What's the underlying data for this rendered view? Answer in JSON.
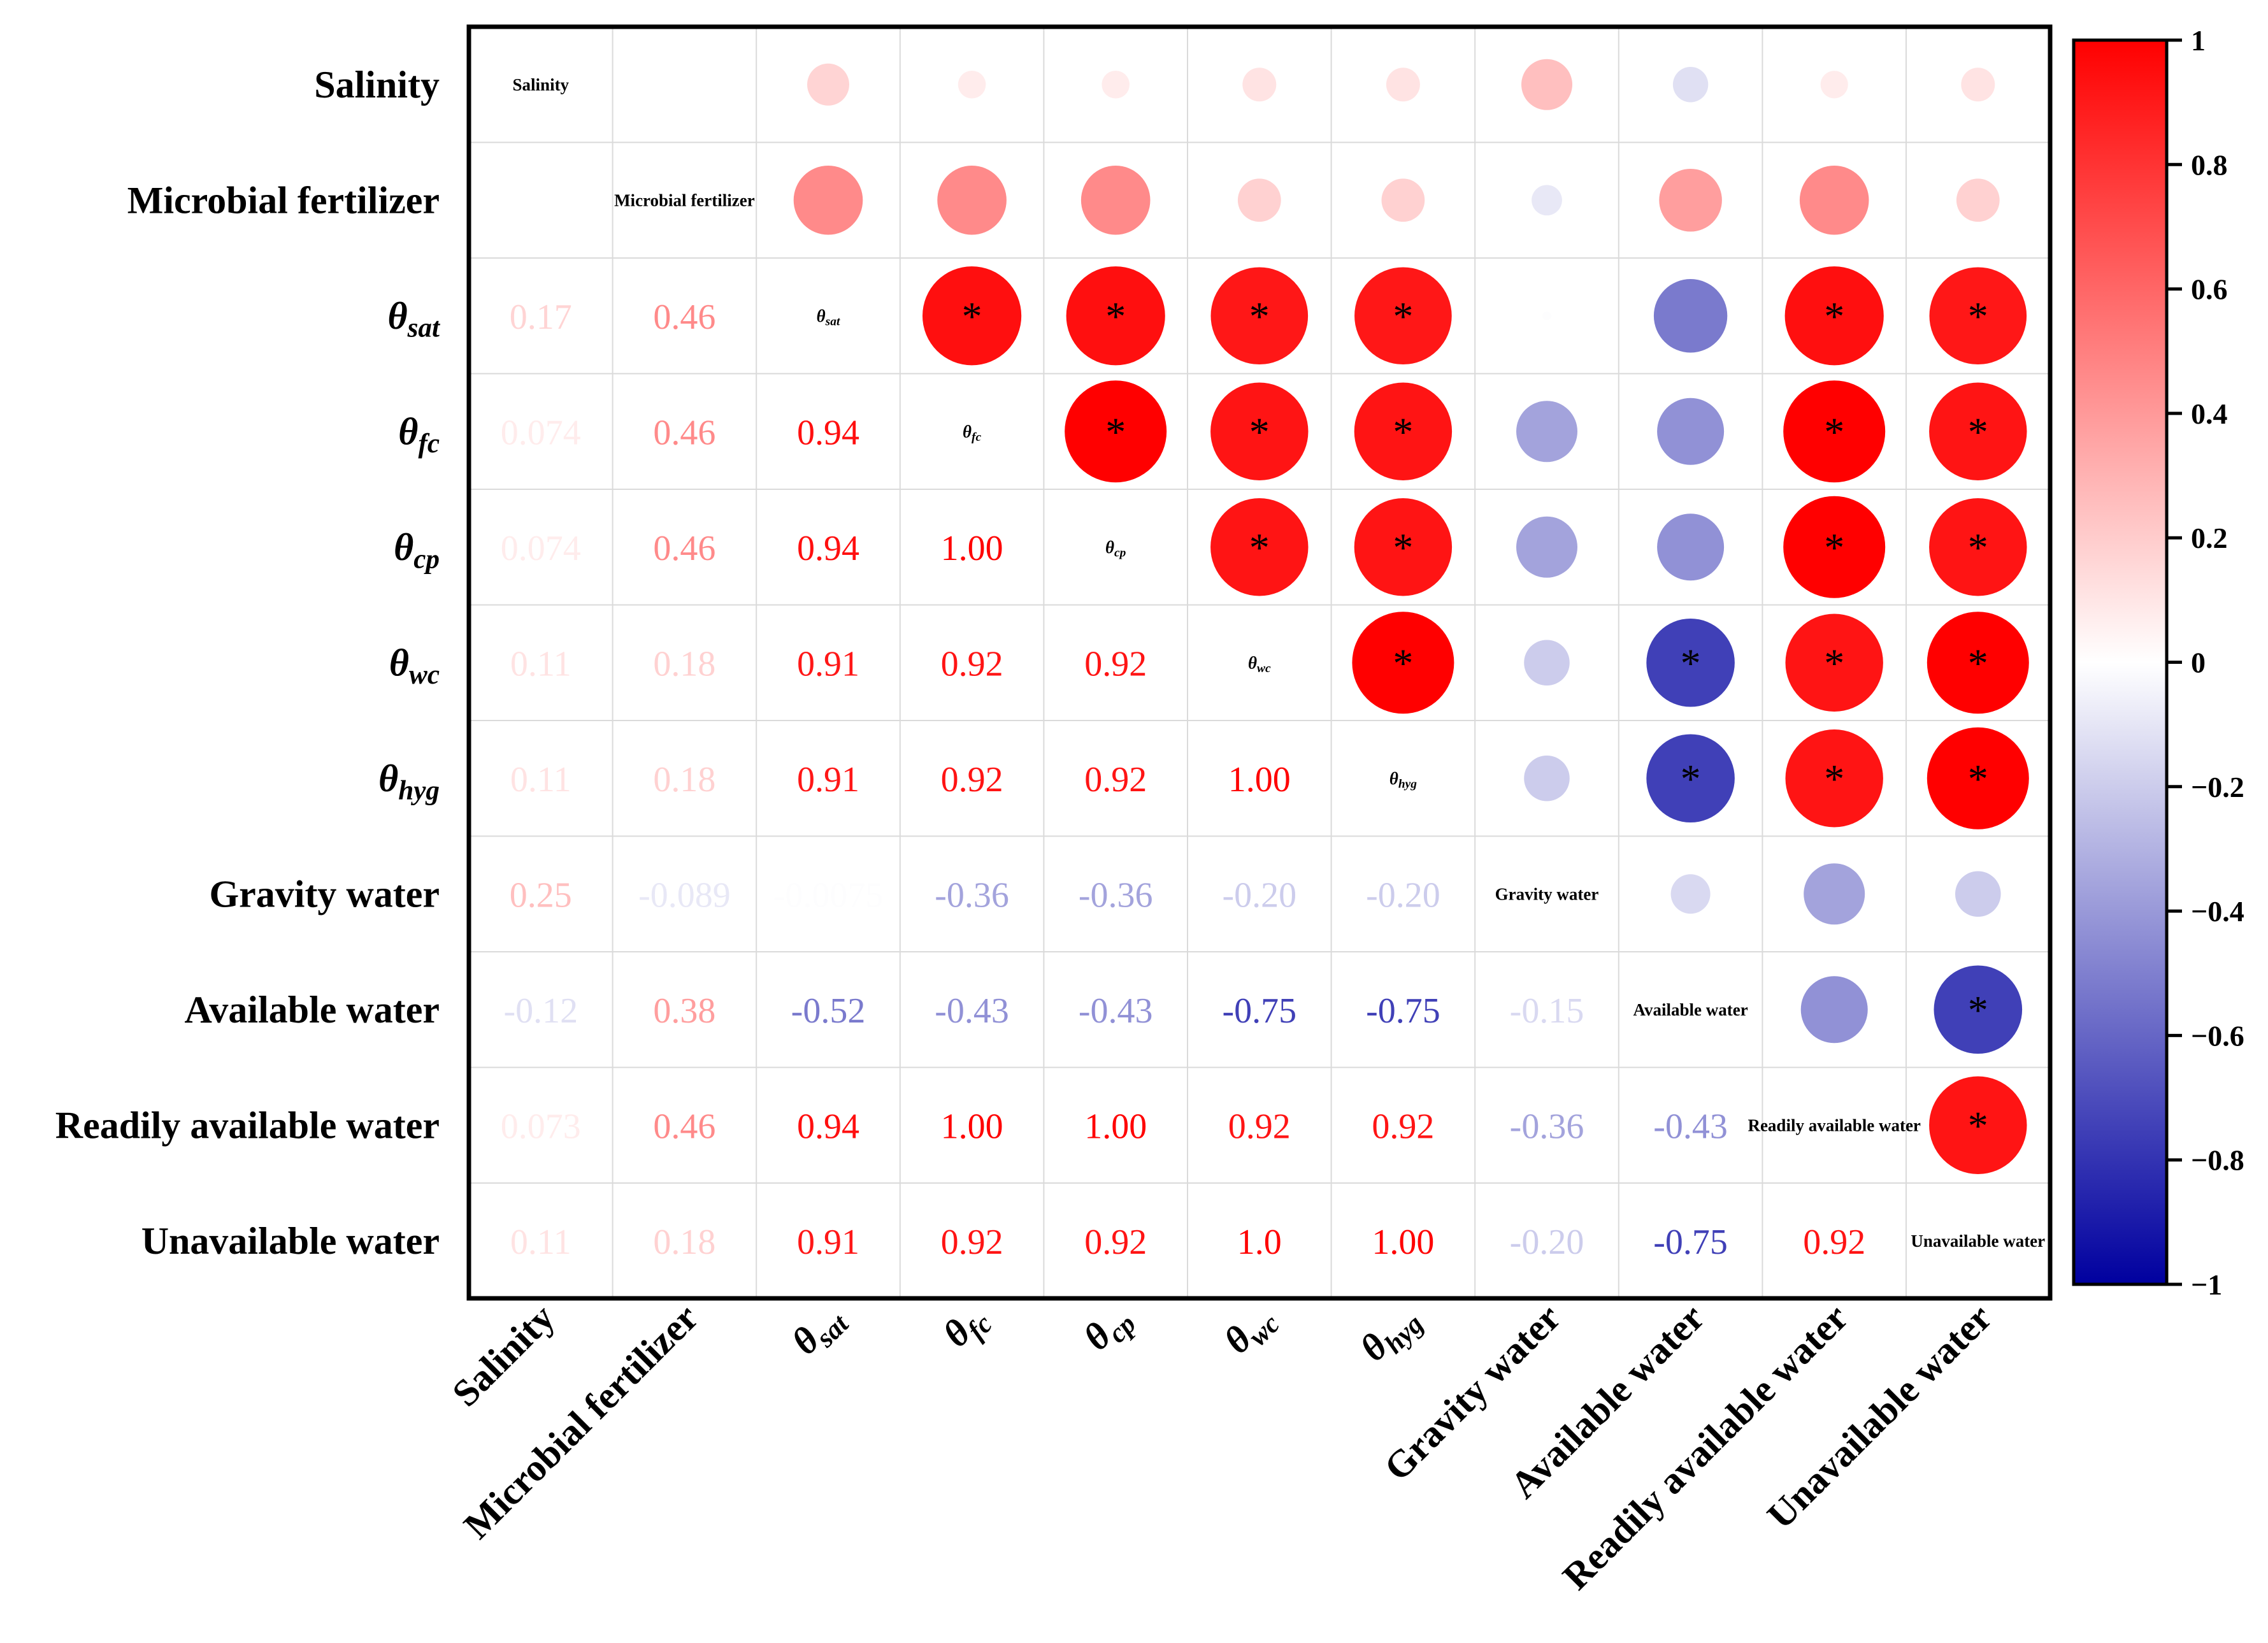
{
  "chart_data": {
    "type": "heatmap",
    "title": "",
    "variables": [
      {
        "label": "Salinity",
        "sym": ""
      },
      {
        "label": "Microbial fertilizer",
        "sym": ""
      },
      {
        "label": "θ",
        "sym": "sat"
      },
      {
        "label": "θ",
        "sym": "fc"
      },
      {
        "label": "θ",
        "sym": "cp"
      },
      {
        "label": "θ",
        "sym": "wc"
      },
      {
        "label": "θ",
        "sym": "hyg"
      },
      {
        "label": "Gravity water",
        "sym": ""
      },
      {
        "label": "Available water",
        "sym": ""
      },
      {
        "label": "Readily available water",
        "sym": ""
      },
      {
        "label": "Unavailable water",
        "sym": ""
      }
    ],
    "lower_labels": [
      [
        "",
        "",
        "",
        "",
        "",
        "",
        "",
        "",
        "",
        "",
        ""
      ],
      [
        "",
        "",
        "",
        "",
        "",
        "",
        "",
        "",
        "",
        "",
        ""
      ],
      [
        "0.17",
        "0.46",
        "",
        "",
        "",
        "",
        "",
        "",
        "",
        "",
        ""
      ],
      [
        "0.074",
        "0.46",
        "0.94",
        "",
        "",
        "",
        "",
        "",
        "",
        "",
        ""
      ],
      [
        "0.074",
        "0.46",
        "0.94",
        "1.00",
        "",
        "",
        "",
        "",
        "",
        "",
        ""
      ],
      [
        "0.11",
        "0.18",
        "0.91",
        "0.92",
        "0.92",
        "",
        "",
        "",
        "",
        "",
        ""
      ],
      [
        "0.11",
        "0.18",
        "0.91",
        "0.92",
        "0.92",
        "1.00",
        "",
        "",
        "",
        "",
        ""
      ],
      [
        "0.25",
        "-0.089",
        "-0.0075",
        "-0.36",
        "-0.36",
        "-0.20",
        "-0.20",
        "",
        "",
        "",
        ""
      ],
      [
        "-0.12",
        "0.38",
        "-0.52",
        "-0.43",
        "-0.43",
        "-0.75",
        "-0.75",
        "-0.15",
        "",
        "",
        ""
      ],
      [
        "0.073",
        "0.46",
        "0.94",
        "1.00",
        "1.00",
        "0.92",
        "0.92",
        "-0.36",
        "-0.43",
        "",
        ""
      ],
      [
        "0.11",
        "0.18",
        "0.91",
        "0.92",
        "0.92",
        "1.0",
        "1.00",
        "-0.20",
        "-0.75",
        "0.92",
        ""
      ]
    ],
    "upper_values": [
      [
        null,
        0.0,
        0.17,
        0.074,
        0.074,
        0.11,
        0.11,
        0.25,
        -0.12,
        0.073,
        0.11
      ],
      [
        null,
        null,
        0.46,
        0.46,
        0.46,
        0.18,
        0.18,
        -0.089,
        0.38,
        0.46,
        0.18
      ],
      [
        null,
        null,
        null,
        0.94,
        0.94,
        0.91,
        0.91,
        -0.0075,
        -0.52,
        0.94,
        0.91
      ],
      [
        null,
        null,
        null,
        null,
        1.0,
        0.92,
        0.92,
        -0.36,
        -0.43,
        1.0,
        0.92
      ],
      [
        null,
        null,
        null,
        null,
        null,
        0.92,
        0.92,
        -0.36,
        -0.43,
        1.0,
        0.92
      ],
      [
        null,
        null,
        null,
        null,
        null,
        null,
        1.0,
        -0.2,
        -0.75,
        0.92,
        1.0
      ],
      [
        null,
        null,
        null,
        null,
        null,
        null,
        null,
        -0.2,
        -0.75,
        0.92,
        1.0
      ],
      [
        null,
        null,
        null,
        null,
        null,
        null,
        null,
        null,
        -0.15,
        -0.36,
        -0.2
      ],
      [
        null,
        null,
        null,
        null,
        null,
        null,
        null,
        null,
        null,
        -0.43,
        -0.75
      ],
      [
        null,
        null,
        null,
        null,
        null,
        null,
        null,
        null,
        null,
        null,
        0.92
      ],
      [
        null,
        null,
        null,
        null,
        null,
        null,
        null,
        null,
        null,
        null,
        null
      ]
    ],
    "significance_marker": "*",
    "significant_pairs": [
      [
        2,
        3
      ],
      [
        2,
        4
      ],
      [
        2,
        5
      ],
      [
        2,
        6
      ],
      [
        2,
        9
      ],
      [
        2,
        10
      ],
      [
        3,
        4
      ],
      [
        3,
        5
      ],
      [
        3,
        6
      ],
      [
        3,
        9
      ],
      [
        3,
        10
      ],
      [
        4,
        5
      ],
      [
        4,
        6
      ],
      [
        4,
        9
      ],
      [
        4,
        10
      ],
      [
        5,
        6
      ],
      [
        5,
        8
      ],
      [
        5,
        9
      ],
      [
        5,
        10
      ],
      [
        6,
        8
      ],
      [
        6,
        9
      ],
      [
        6,
        10
      ],
      [
        8,
        10
      ],
      [
        9,
        10
      ]
    ],
    "colorbar": {
      "range": [
        -1,
        1
      ],
      "ticks": [
        "1",
        "0.8",
        "0.6",
        "0.4",
        "0.2",
        "0",
        "−0.2",
        "−0.4",
        "−0.6",
        "−0.8",
        "−1"
      ],
      "tick_values": [
        1,
        0.8,
        0.6,
        0.4,
        0.2,
        0,
        -0.2,
        -0.4,
        -0.6,
        -0.8,
        -1
      ],
      "high_color": "#ff0000",
      "mid_color": "#ffffff",
      "low_color": "#00009f"
    }
  }
}
